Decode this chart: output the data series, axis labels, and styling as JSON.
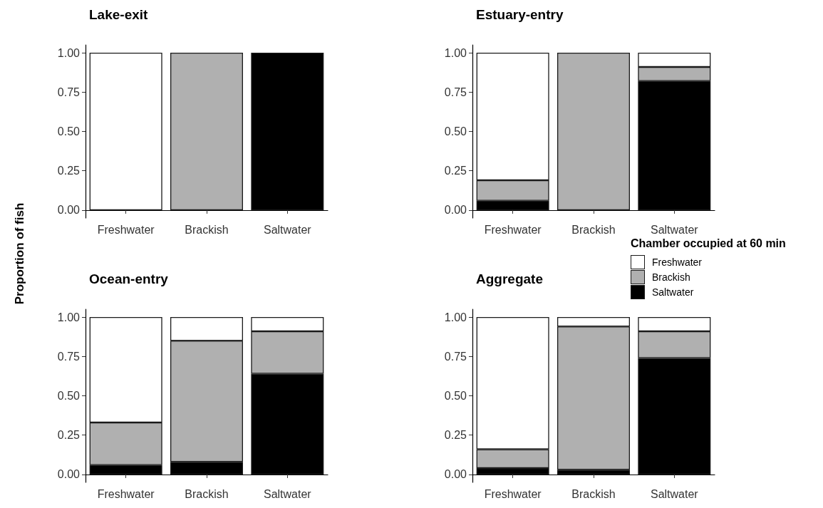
{
  "chart_data": [
    {
      "type": "bar",
      "title": "Lake-exit",
      "ylabel": "Proportion of fish",
      "legend": "right",
      "legend_title": "Chamber occupied at 60 min",
      "stacked": true,
      "grid": false,
      "categories": [
        "Freshwater",
        "Brackish",
        "Saltwater"
      ],
      "ylim": [
        -0.05,
        1.05
      ],
      "yticks": [
        {
          "value": 0,
          "label": "0.00"
        },
        {
          "value": 0.25,
          "label": "0.25"
        },
        {
          "value": 0.5,
          "label": "0.50"
        },
        {
          "value": 0.75,
          "label": "0.75"
        },
        {
          "value": 1,
          "label": "1.00"
        }
      ],
      "series": [
        {
          "name": "Saltwater",
          "color": "#000000",
          "values": [
            0,
            0,
            1
          ]
        },
        {
          "name": "Brackish",
          "color": "#b0b0b0",
          "values": [
            0,
            1,
            0
          ]
        },
        {
          "name": "Freshwater",
          "color": "#ffffff",
          "values": [
            1,
            0,
            0
          ]
        }
      ]
    },
    {
      "type": "bar",
      "title": "Estuary-entry",
      "stacked": true,
      "grid": false,
      "categories": [
        "Freshwater",
        "Brackish",
        "Saltwater"
      ],
      "ylim": [
        -0.05,
        1.05
      ],
      "yticks": [
        {
          "value": 0,
          "label": "0.00"
        },
        {
          "value": 0.25,
          "label": "0.25"
        },
        {
          "value": 0.5,
          "label": "0.50"
        },
        {
          "value": 0.75,
          "label": "0.75"
        },
        {
          "value": 1,
          "label": "1.00"
        }
      ],
      "series": [
        {
          "color": "#000000",
          "values": [
            0.06,
            0,
            0.82
          ]
        },
        {
          "color": "#b0b0b0",
          "values": [
            0.13,
            1,
            0.09
          ]
        },
        {
          "color": "#ffffff",
          "values": [
            0.81,
            0,
            0.09
          ]
        }
      ]
    },
    {
      "type": "bar",
      "title": "Ocean-entry",
      "stacked": true,
      "grid": false,
      "categories": [
        "Freshwater",
        "Brackish",
        "Saltwater"
      ],
      "ylim": [
        -0.05,
        1.05
      ],
      "yticks": [
        {
          "value": 0,
          "label": "0.00"
        },
        {
          "value": 0.25,
          "label": "0.25"
        },
        {
          "value": 0.5,
          "label": "0.50"
        },
        {
          "value": 0.75,
          "label": "0.75"
        },
        {
          "value": 1,
          "label": "1.00"
        }
      ],
      "series": [
        {
          "color": "#000000",
          "values": [
            0.06,
            0.08,
            0.64
          ]
        },
        {
          "color": "#b0b0b0",
          "values": [
            0.27,
            0.77,
            0.27
          ]
        },
        {
          "color": "#ffffff",
          "values": [
            0.67,
            0.15,
            0.09
          ]
        }
      ]
    },
    {
      "type": "bar",
      "title": "Aggregate",
      "stacked": true,
      "grid": false,
      "categories": [
        "Freshwater",
        "Brackish",
        "Saltwater"
      ],
      "ylim": [
        -0.05,
        1.05
      ],
      "yticks": [
        {
          "value": 0,
          "label": "0.00"
        },
        {
          "value": 0.25,
          "label": "0.25"
        },
        {
          "value": 0.5,
          "label": "0.50"
        },
        {
          "value": 0.75,
          "label": "0.75"
        },
        {
          "value": 1,
          "label": "1.00"
        }
      ],
      "series": [
        {
          "color": "#000000",
          "values": [
            0.04,
            0.03,
            0.74
          ]
        },
        {
          "color": "#b0b0b0",
          "values": [
            0.12,
            0.91,
            0.17
          ]
        },
        {
          "color": "#ffffff",
          "values": [
            0.84,
            0.06,
            0.09
          ]
        }
      ]
    }
  ]
}
